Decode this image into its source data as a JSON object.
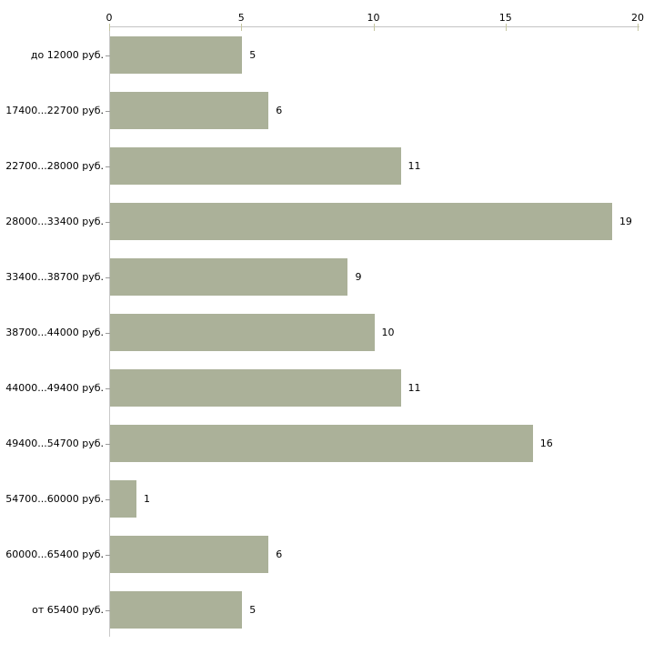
{
  "colors": {
    "bar": "#abb199",
    "axis_line_horizontal": "#c4c4c4",
    "axis_line_vertical": "#c9c9c9",
    "x_tick": "#c5c6a0",
    "category_tick": "#9a9a9a",
    "text": "#000000",
    "background": "#ffffff"
  },
  "chart_data": {
    "type": "bar",
    "orientation": "horizontal",
    "title": "",
    "xlabel": "",
    "ylabel": "",
    "grid": false,
    "legend": false,
    "value_labels_shown": true,
    "x_axis_position": "top",
    "xlim": [
      0,
      20
    ],
    "x_ticks": [
      0,
      5,
      10,
      15,
      20
    ],
    "categories": [
      "до 12000 руб.",
      "17400...22700 руб.",
      "22700...28000 руб.",
      "28000...33400 руб.",
      "33400...38700 руб.",
      "38700...44000 руб.",
      "44000...49400 руб.",
      "49400...54700 руб.",
      "54700...60000 руб.",
      "60000...65400 руб.",
      "от 65400 руб."
    ],
    "values": [
      5,
      6,
      11,
      19,
      9,
      10,
      11,
      16,
      1,
      6,
      5
    ]
  }
}
